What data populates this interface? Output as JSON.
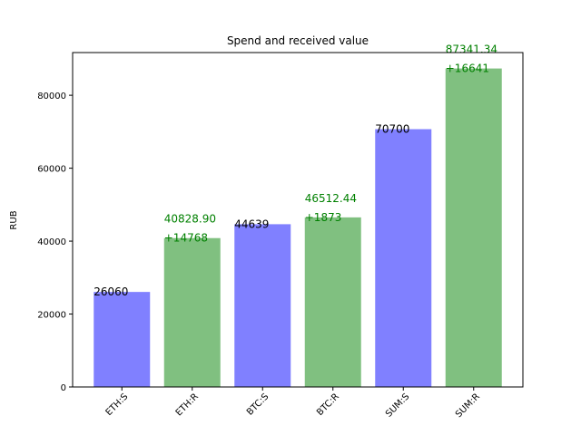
{
  "chart_data": {
    "type": "bar",
    "title": "Spend and received value",
    "xlabel": "",
    "ylabel": "RUB",
    "ylim": [
      0,
      91711
    ],
    "yticks": [
      0,
      20000,
      40000,
      60000,
      80000
    ],
    "ytick_labels": [
      "0",
      "20000",
      "40000",
      "60000",
      "80000"
    ],
    "categories": [
      "ETH:S",
      "ETH:R",
      "BTC:S",
      "BTC:R",
      "SUM:S",
      "SUM:R"
    ],
    "values": [
      26060,
      40828.9,
      44639,
      46512.44,
      70700,
      87341.34
    ],
    "bar_colors": [
      "#8080ff",
      "#80c080",
      "#8080ff",
      "#80c080",
      "#8080ff",
      "#80c080"
    ],
    "bar_labels": [
      {
        "lines": [
          "26060"
        ],
        "color": "#000000"
      },
      {
        "lines": [
          "40828.90",
          "+14768"
        ],
        "color": "#008000"
      },
      {
        "lines": [
          "44639"
        ],
        "color": "#000000"
      },
      {
        "lines": [
          "46512.44",
          "+1873"
        ],
        "color": "#008000"
      },
      {
        "lines": [
          "70700"
        ],
        "color": "#000000"
      },
      {
        "lines": [
          "87341.34",
          "+16641"
        ],
        "color": "#008000"
      }
    ],
    "grid": false,
    "legend": "none"
  }
}
